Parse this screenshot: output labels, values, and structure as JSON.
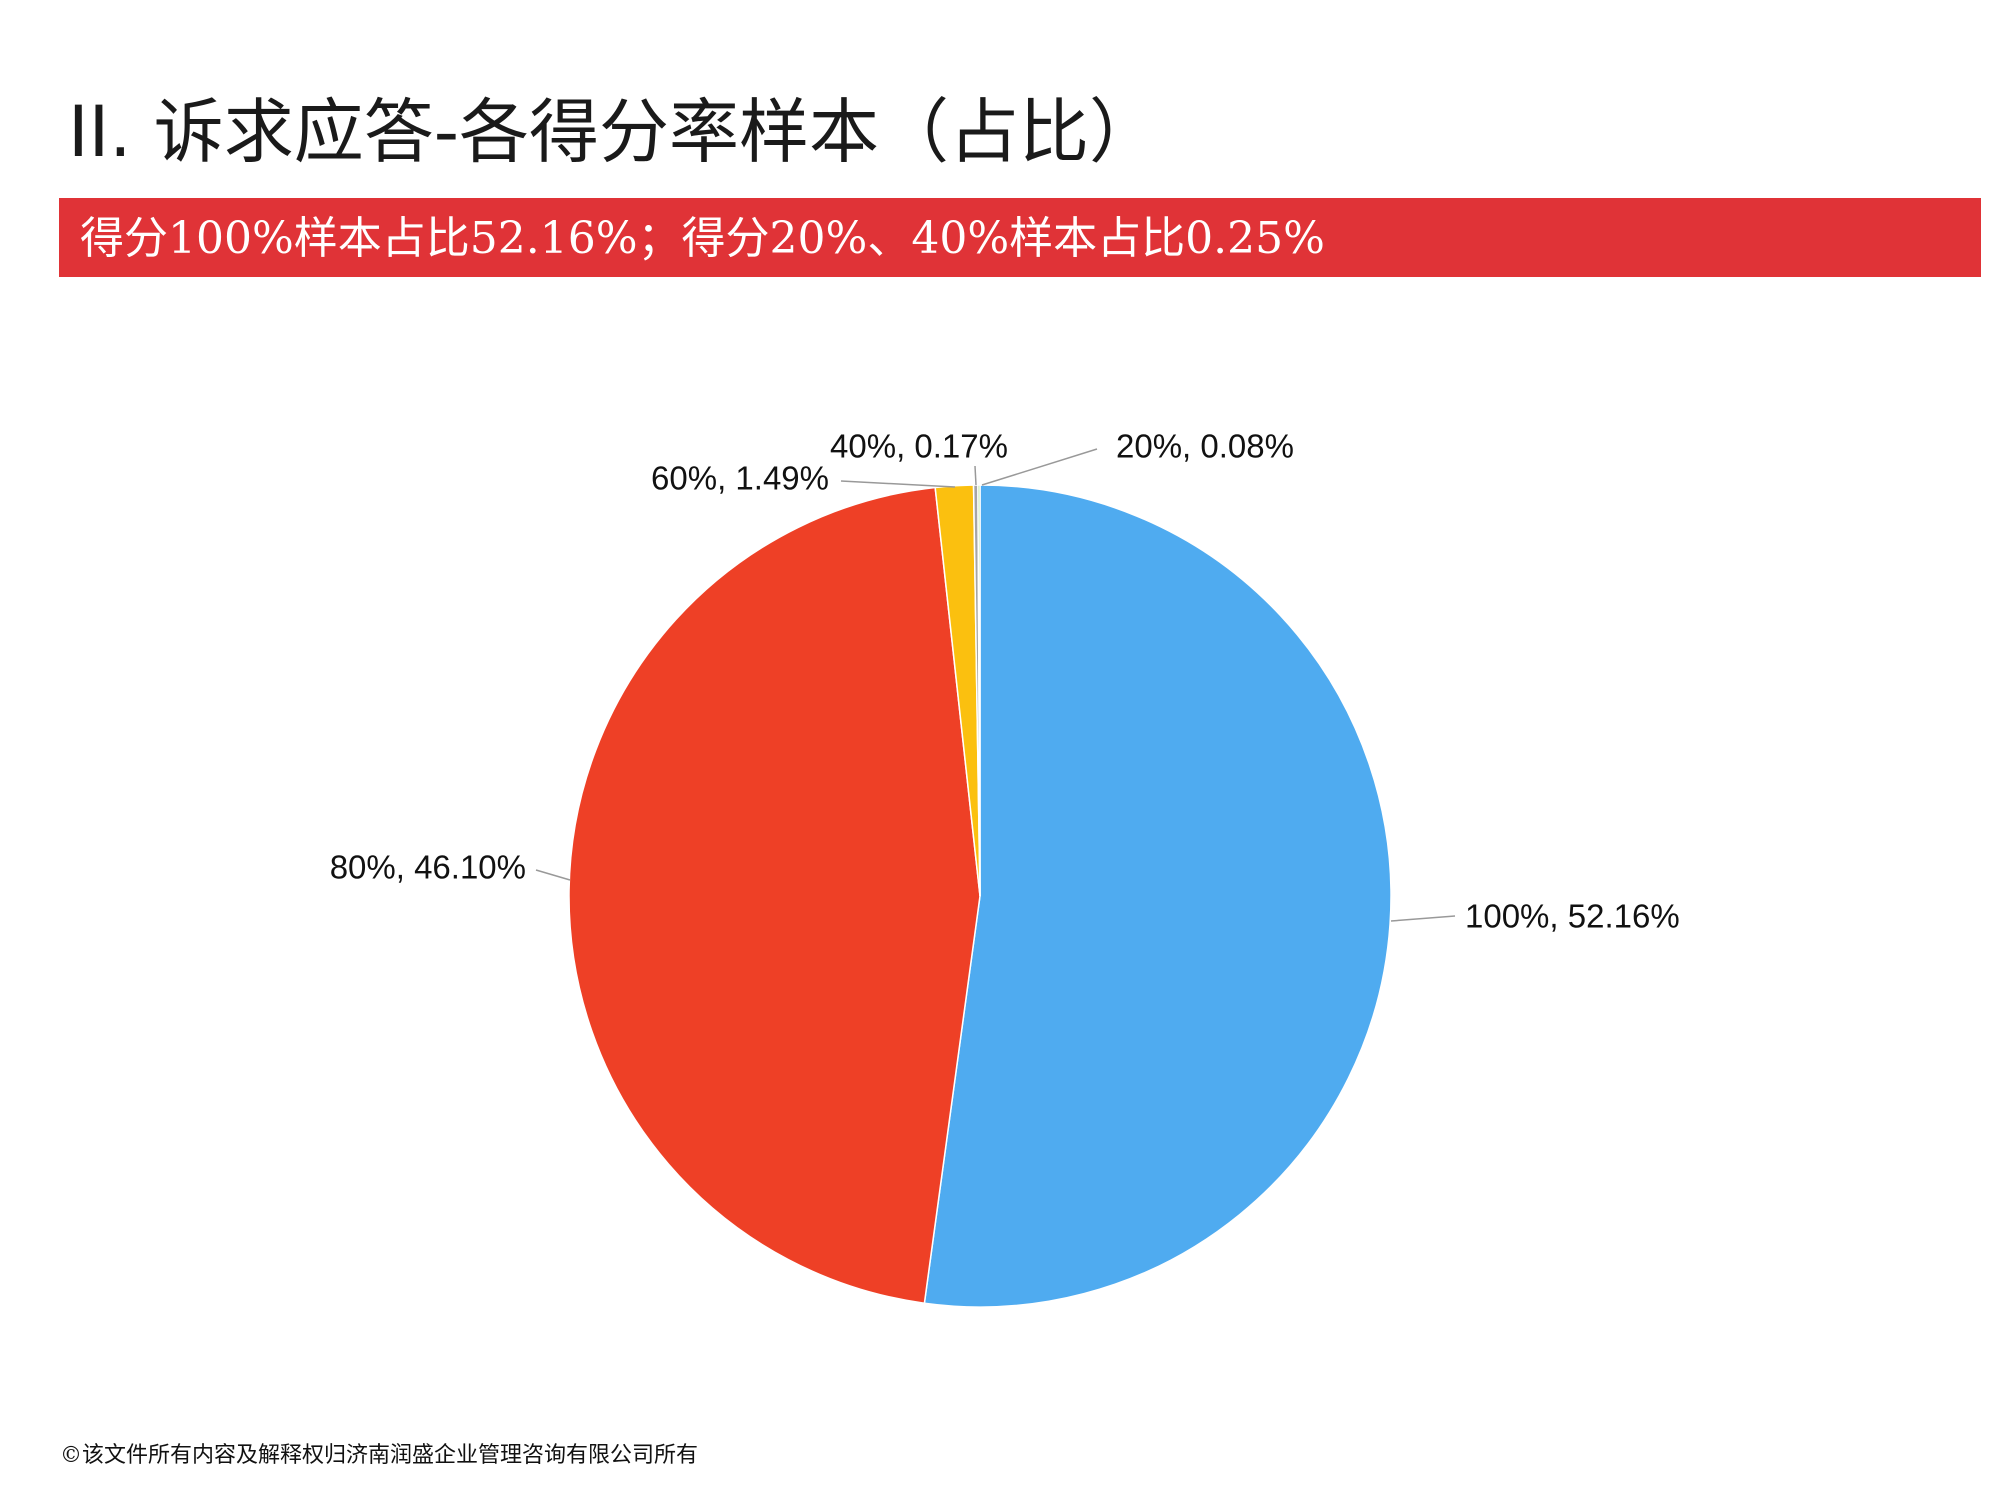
{
  "header": {
    "title": "II.  诉求应答-各得分率样本（占比）",
    "banner": "得分100%样本占比52.16%；得分20%、40%样本占比0.25%"
  },
  "chart_data": {
    "type": "pie",
    "labels": [
      "100%, 52.16%",
      "80%, 46.10%",
      "60%, 1.49%",
      "40%, 0.17%",
      "20%, 0.08%"
    ],
    "values": [
      52.16,
      46.1,
      1.49,
      0.17,
      0.08
    ],
    "colors": [
      "#4fabf0",
      "#ee4026",
      "#fbc00f",
      "#a5a5a5",
      "#8fd16a"
    ]
  },
  "footer": {
    "text": "©该文件所有内容及解释权归济南润盛企业管理咨询有限公司所有"
  }
}
